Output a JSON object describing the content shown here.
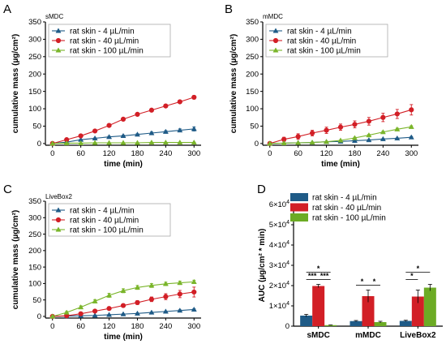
{
  "colors": {
    "blue": "#1f5b87",
    "red": "#d21f26",
    "green": "#7ab52a",
    "bar_blue": "#1f5b87",
    "bar_red": "#d21f26",
    "bar_green": "#6cab24"
  },
  "chart_data": [
    {
      "id": "A",
      "type": "line",
      "tag": "sMDC",
      "xlabel": "time (min)",
      "ylabel": "cumulative mass (µg/cm²)",
      "xlim": [
        -15,
        315
      ],
      "ylim": [
        -5,
        350
      ],
      "xticks": [
        "0",
        "60",
        "120",
        "180",
        "240",
        "300"
      ],
      "yticks": [
        "0",
        "50",
        "100",
        "150",
        "200",
        "250",
        "300",
        "350"
      ],
      "x": [
        0,
        30,
        60,
        90,
        120,
        150,
        180,
        210,
        240,
        270,
        300
      ],
      "series": [
        {
          "name": "rat skin - 4 µL/min",
          "color": "blue",
          "marker": "triangle",
          "values": [
            0,
            4,
            11,
            15,
            19,
            22,
            26,
            30,
            34,
            38,
            42
          ],
          "errors": [
            0,
            1,
            1,
            1,
            2,
            2,
            2,
            3,
            3,
            4,
            6
          ]
        },
        {
          "name": "rat skin - 40 µL/min",
          "color": "red",
          "marker": "circle",
          "values": [
            0,
            11,
            22,
            36,
            52,
            70,
            84,
            96,
            108,
            120,
            133
          ],
          "errors": [
            0,
            1,
            2,
            2,
            3,
            3,
            3,
            3,
            3,
            4,
            5
          ]
        },
        {
          "name": "rat skin - 100 µL/min",
          "color": "green",
          "marker": "triangle",
          "values": [
            0,
            1,
            1,
            2,
            2,
            2,
            2,
            3,
            3,
            3,
            3
          ],
          "errors": [
            0,
            0.5,
            0.5,
            0.5,
            0.5,
            0.5,
            0.5,
            0.5,
            0.5,
            0.5,
            0.5
          ]
        }
      ]
    },
    {
      "id": "B",
      "type": "line",
      "tag": "mMDC",
      "xlabel": "time (min)",
      "ylabel": "cumulative mass (µg/cm²)",
      "xlim": [
        -15,
        315
      ],
      "ylim": [
        -5,
        350
      ],
      "xticks": [
        "0",
        "60",
        "120",
        "180",
        "240",
        "300"
      ],
      "yticks": [
        "0",
        "50",
        "100",
        "150",
        "200",
        "250",
        "300",
        "350"
      ],
      "x": [
        0,
        30,
        60,
        90,
        120,
        150,
        180,
        210,
        240,
        270,
        300
      ],
      "series": [
        {
          "name": "rat skin - 4 µL/min",
          "color": "blue",
          "marker": "triangle",
          "values": [
            0,
            1,
            2,
            3,
            5,
            6,
            8,
            10,
            13,
            15,
            18
          ],
          "errors": [
            0,
            0.5,
            0.5,
            0.5,
            1,
            1,
            1,
            1,
            1,
            1,
            2
          ]
        },
        {
          "name": "rat skin - 40 µL/min",
          "color": "red",
          "marker": "circle",
          "values": [
            0,
            12,
            20,
            30,
            38,
            47,
            55,
            64,
            75,
            85,
            97
          ],
          "errors": [
            0,
            6,
            8,
            8,
            9,
            9,
            10,
            11,
            12,
            13,
            15
          ]
        },
        {
          "name": "rat skin - 100 µL/min",
          "color": "green",
          "marker": "triangle",
          "values": [
            0,
            1,
            2,
            3,
            5,
            9,
            16,
            24,
            33,
            41,
            48
          ],
          "errors": [
            0,
            0.5,
            0.5,
            1,
            1,
            1,
            2,
            2,
            2,
            3,
            3
          ]
        }
      ]
    },
    {
      "id": "C",
      "type": "line",
      "tag": "LiveBox2",
      "xlabel": "time (min)",
      "ylabel": "cumulative mass (µg/cm²)",
      "xlim": [
        -15,
        315
      ],
      "ylim": [
        -5,
        350
      ],
      "xticks": [
        "0",
        "60",
        "120",
        "180",
        "240",
        "300"
      ],
      "yticks": [
        "0",
        "50",
        "100",
        "150",
        "200",
        "250",
        "300",
        "350"
      ],
      "x": [
        0,
        30,
        60,
        90,
        120,
        150,
        180,
        210,
        240,
        270,
        300
      ],
      "series": [
        {
          "name": "rat skin - 4 µL/min",
          "color": "blue",
          "marker": "triangle",
          "values": [
            0,
            1,
            2,
            3,
            5,
            7,
            9,
            12,
            15,
            18,
            21
          ],
          "errors": [
            0,
            0.5,
            0.5,
            0.5,
            1,
            1,
            1,
            1,
            1,
            2,
            2
          ]
        },
        {
          "name": "rat skin - 40 µL/min",
          "color": "red",
          "marker": "circle",
          "values": [
            0,
            2,
            8,
            16,
            24,
            33,
            42,
            52,
            60,
            68,
            74
          ],
          "errors": [
            0,
            1,
            2,
            3,
            4,
            5,
            6,
            7,
            9,
            11,
            15
          ]
        },
        {
          "name": "rat skin - 100 µL/min",
          "color": "green",
          "marker": "triangle",
          "values": [
            0,
            12,
            28,
            46,
            64,
            78,
            88,
            94,
            99,
            102,
            105
          ],
          "errors": [
            0,
            3,
            4,
            5,
            6,
            6,
            6,
            6,
            5,
            5,
            5
          ]
        }
      ]
    },
    {
      "id": "D",
      "type": "bar",
      "xlabel": "",
      "ylabel": "AUC (µg/cm² * min)",
      "ylim": [
        0,
        60000
      ],
      "yticks": [
        {
          "value": 0,
          "base": "0",
          "exp": ""
        },
        {
          "value": 10000,
          "base": "1×10",
          "exp": "4"
        },
        {
          "value": 20000,
          "base": "2×10",
          "exp": "4"
        },
        {
          "value": 30000,
          "base": "3×10",
          "exp": "4"
        },
        {
          "value": 40000,
          "base": "4×10",
          "exp": "4"
        },
        {
          "value": 50000,
          "base": "5×10",
          "exp": "4"
        },
        {
          "value": 60000,
          "base": "6×10",
          "exp": "4"
        }
      ],
      "categories": [
        "sMDC",
        "mMDC",
        "LiveBox2"
      ],
      "series": [
        {
          "name": "rat skin - 4 µL/min",
          "color": "bar_blue",
          "values": [
            5200,
            2500,
            2600
          ],
          "errors": [
            600,
            300,
            300
          ]
        },
        {
          "name": "rat skin - 40 µL/min",
          "color": "bar_red",
          "values": [
            19800,
            14800,
            14600
          ],
          "errors": [
            800,
            3000,
            3200
          ]
        },
        {
          "name": "rat skin - 100 µL/min",
          "color": "bar_green",
          "values": [
            500,
            2000,
            19000
          ],
          "errors": [
            100,
            400,
            1600
          ]
        }
      ],
      "significance": [
        {
          "cat": 0,
          "from": 0,
          "to": 2,
          "label": "*",
          "level": 1
        },
        {
          "cat": 0,
          "from": 0,
          "to": 1,
          "label": "***",
          "level": 0
        },
        {
          "cat": 0,
          "from": 1,
          "to": 2,
          "label": "***",
          "level": 0
        },
        {
          "cat": 1,
          "from": 0,
          "to": 1,
          "label": "*",
          "level": 0
        },
        {
          "cat": 1,
          "from": 1,
          "to": 2,
          "label": "*",
          "level": 0
        },
        {
          "cat": 2,
          "from": 0,
          "to": 2,
          "label": "*",
          "level": 1
        },
        {
          "cat": 2,
          "from": 0,
          "to": 1,
          "label": "*",
          "level": 0
        }
      ]
    }
  ]
}
